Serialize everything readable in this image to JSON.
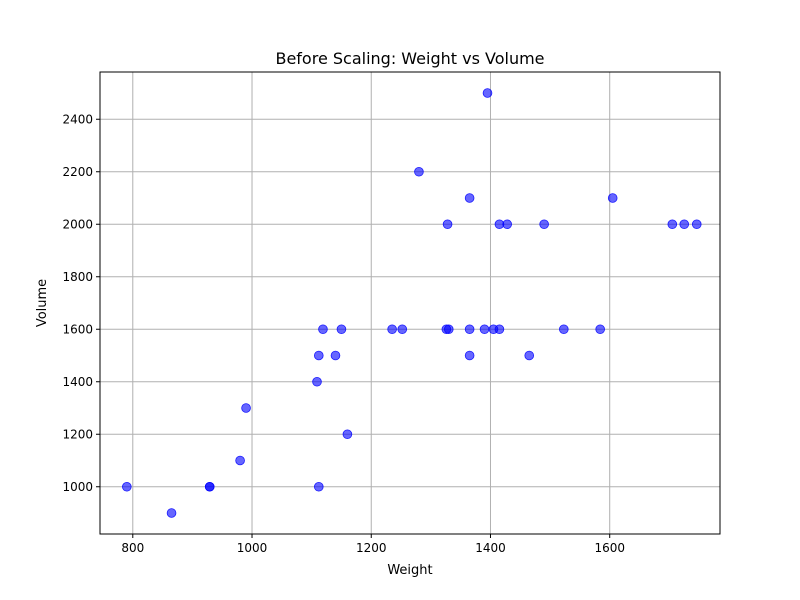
{
  "chart_data": {
    "type": "scatter",
    "title": "Before Scaling: Weight vs Volume",
    "xlabel": "Weight",
    "ylabel": "Volume",
    "xlim": [
      745,
      1785
    ],
    "ylim": [
      820,
      2580
    ],
    "xticks": [
      800,
      1000,
      1200,
      1400,
      1600
    ],
    "yticks": [
      1000,
      1200,
      1400,
      1600,
      1800,
      2000,
      2200,
      2400
    ],
    "grid": true,
    "marker_color": "#0000ff",
    "marker_alpha": 0.6,
    "series": [
      {
        "points": [
          [
            790,
            1000
          ],
          [
            865,
            900
          ],
          [
            929,
            1000
          ],
          [
            929,
            1000
          ],
          [
            980,
            1100
          ],
          [
            990,
            1300
          ],
          [
            1109,
            1400
          ],
          [
            1112,
            1500
          ],
          [
            1112,
            1000
          ],
          [
            1119,
            1600
          ],
          [
            1140,
            1500
          ],
          [
            1150,
            1600
          ],
          [
            1160,
            1200
          ],
          [
            1235,
            1600
          ],
          [
            1252,
            1600
          ],
          [
            1280,
            2200
          ],
          [
            1326,
            1600
          ],
          [
            1328,
            2000
          ],
          [
            1330,
            1600
          ],
          [
            1365,
            1600
          ],
          [
            1365,
            1500
          ],
          [
            1365,
            2100
          ],
          [
            1390,
            1600
          ],
          [
            1395,
            2500
          ],
          [
            1405,
            1600
          ],
          [
            1415,
            1600
          ],
          [
            1415,
            2000
          ],
          [
            1428,
            2000
          ],
          [
            1465,
            1500
          ],
          [
            1490,
            2000
          ],
          [
            1523,
            1600
          ],
          [
            1584,
            1600
          ],
          [
            1605,
            2100
          ],
          [
            1705,
            2000
          ],
          [
            1725,
            2000
          ],
          [
            1746,
            2000
          ]
        ]
      }
    ]
  }
}
